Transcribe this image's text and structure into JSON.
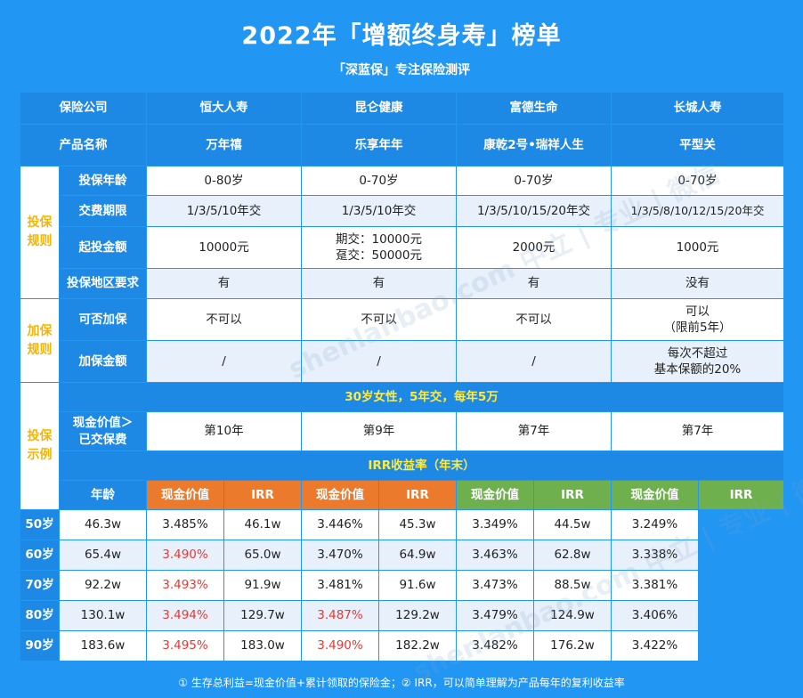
{
  "title": "2022年「增额终身寿」榜单",
  "subtitle": "「深蓝保」专注保险测评",
  "footer": "① 生存总利益=现金价值+累计领取的保险金；② IRR，可以简单理解为产品每年的复利收益率",
  "watermark": "shenlanbao.com 中立 | 专业 | 微信",
  "header": {
    "company_label": "保险公司",
    "product_label": "产品名称",
    "companies": [
      "恒大人寿",
      "昆仑健康",
      "富德生命",
      "长城人寿"
    ],
    "products": [
      "万年禧",
      "乐享年年",
      "康乾2号•瑞祥人生",
      "平型关"
    ]
  },
  "sections": {
    "rules": "投保规则",
    "add": "加保规则",
    "example": "投保示例"
  },
  "rules": {
    "age": {
      "label": "投保年龄",
      "values": [
        "0-80岁",
        "0-70岁",
        "0-70岁",
        "0-70岁"
      ]
    },
    "term": {
      "label": "交费期限",
      "values": [
        "1/3/5/10年交",
        "1/3/5/10年交",
        "1/3/5/10/15/20年交",
        "1/3/5/8/10/12/15/20年交"
      ]
    },
    "min": {
      "label": "起投金额",
      "values": [
        "10000元",
        "期交：10000元",
        "趸交：50000元",
        "2000元",
        "1000元"
      ]
    },
    "region": {
      "label": "投保地区要求",
      "values": [
        "有",
        "有",
        "有",
        "没有"
      ]
    }
  },
  "add": {
    "can": {
      "label": "可否加保",
      "values": [
        "不可以",
        "不可以",
        "不可以",
        "可以",
        "（限前5年）"
      ]
    },
    "amount": {
      "label": "加保金额",
      "values": [
        "/",
        "/",
        "/",
        "每次不超过",
        "基本保额的20%"
      ]
    }
  },
  "example": {
    "banner": "30岁女性，5年交，每年5万",
    "cv_label_1": "现金价值＞",
    "cv_label_2": "已交保费",
    "cv_values": [
      "第10年",
      "第9年",
      "第7年",
      "第7年"
    ],
    "irr_banner": "IRR收益率（年末）",
    "age_label": "年龄",
    "col_cv": "现金价值",
    "col_irr": "IRR",
    "rows": [
      {
        "age": "50岁",
        "vals": [
          "46.3w",
          "3.485%",
          "46.1w",
          "3.446%",
          "45.3w",
          "3.349%",
          "44.5w",
          "3.249%"
        ]
      },
      {
        "age": "60岁",
        "vals": [
          "65.4w",
          "3.490%",
          "65.0w",
          "3.470%",
          "64.9w",
          "3.463%",
          "62.8w",
          "3.338%"
        ]
      },
      {
        "age": "70岁",
        "vals": [
          "92.2w",
          "3.493%",
          "91.9w",
          "3.481%",
          "91.6w",
          "3.473%",
          "88.5w",
          "3.381%"
        ]
      },
      {
        "age": "80岁",
        "vals": [
          "130.1w",
          "3.494%",
          "129.7w",
          "3.487%",
          "129.2w",
          "3.479%",
          "124.9w",
          "3.406%"
        ]
      },
      {
        "age": "90岁",
        "vals": [
          "183.6w",
          "3.495%",
          "183.0w",
          "3.490%",
          "182.2w",
          "3.482%",
          "176.2w",
          "3.422%"
        ]
      }
    ]
  },
  "colors": {
    "background": "#2196F3",
    "header": "#1E88E5",
    "orange": "#EC7A2C",
    "green": "#6FB04E",
    "highlight": "#E53935",
    "section": "#F4B400"
  }
}
